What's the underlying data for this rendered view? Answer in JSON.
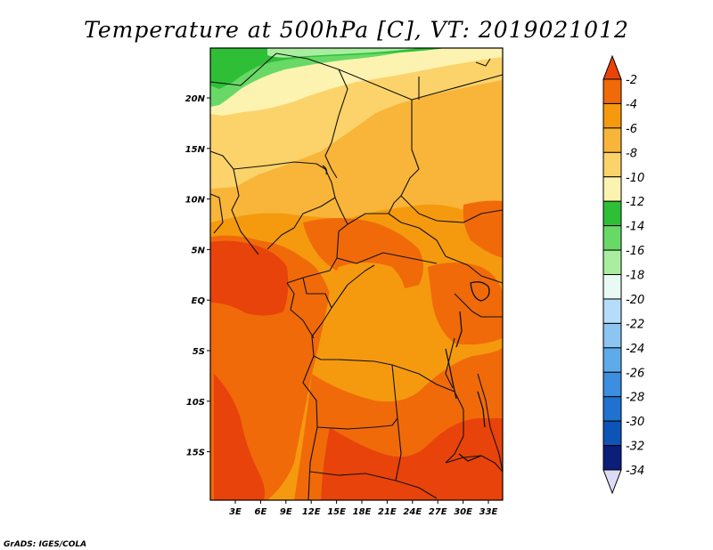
{
  "title": "Temperature at 500hPa [C], VT: 2019021012",
  "credit": "GrADS: IGES/COLA",
  "map": {
    "lat_ticks": [
      "20N",
      "15N",
      "10N",
      "5N",
      "EQ",
      "5S",
      "10S",
      "15S"
    ],
    "lon_ticks": [
      "3E",
      "6E",
      "9E",
      "12E",
      "15E",
      "18E",
      "21E",
      "24E",
      "27E",
      "30E",
      "33E"
    ]
  },
  "colorbar": {
    "labels": [
      "-2",
      "-4",
      "-6",
      "-8",
      "-10",
      "-12",
      "-14",
      "-16",
      "-18",
      "-20",
      "-22",
      "-24",
      "-26",
      "-28",
      "-30",
      "-32",
      "-34"
    ],
    "colors": [
      "#e8430a",
      "#f06a0a",
      "#f59a0e",
      "#f8b53a",
      "#fbd36a",
      "#fdf3b0",
      "#2fbf36",
      "#68d966",
      "#a9ee9f",
      "#e8faf3",
      "#b5dcf8",
      "#8cc4f2",
      "#5faaea",
      "#3b8ee0",
      "#1f72cf",
      "#0e54b8",
      "#0a1e7a"
    ],
    "top_arrow_color": "#e8430a",
    "bottom_arrow_color": "#dcdcf4"
  }
}
